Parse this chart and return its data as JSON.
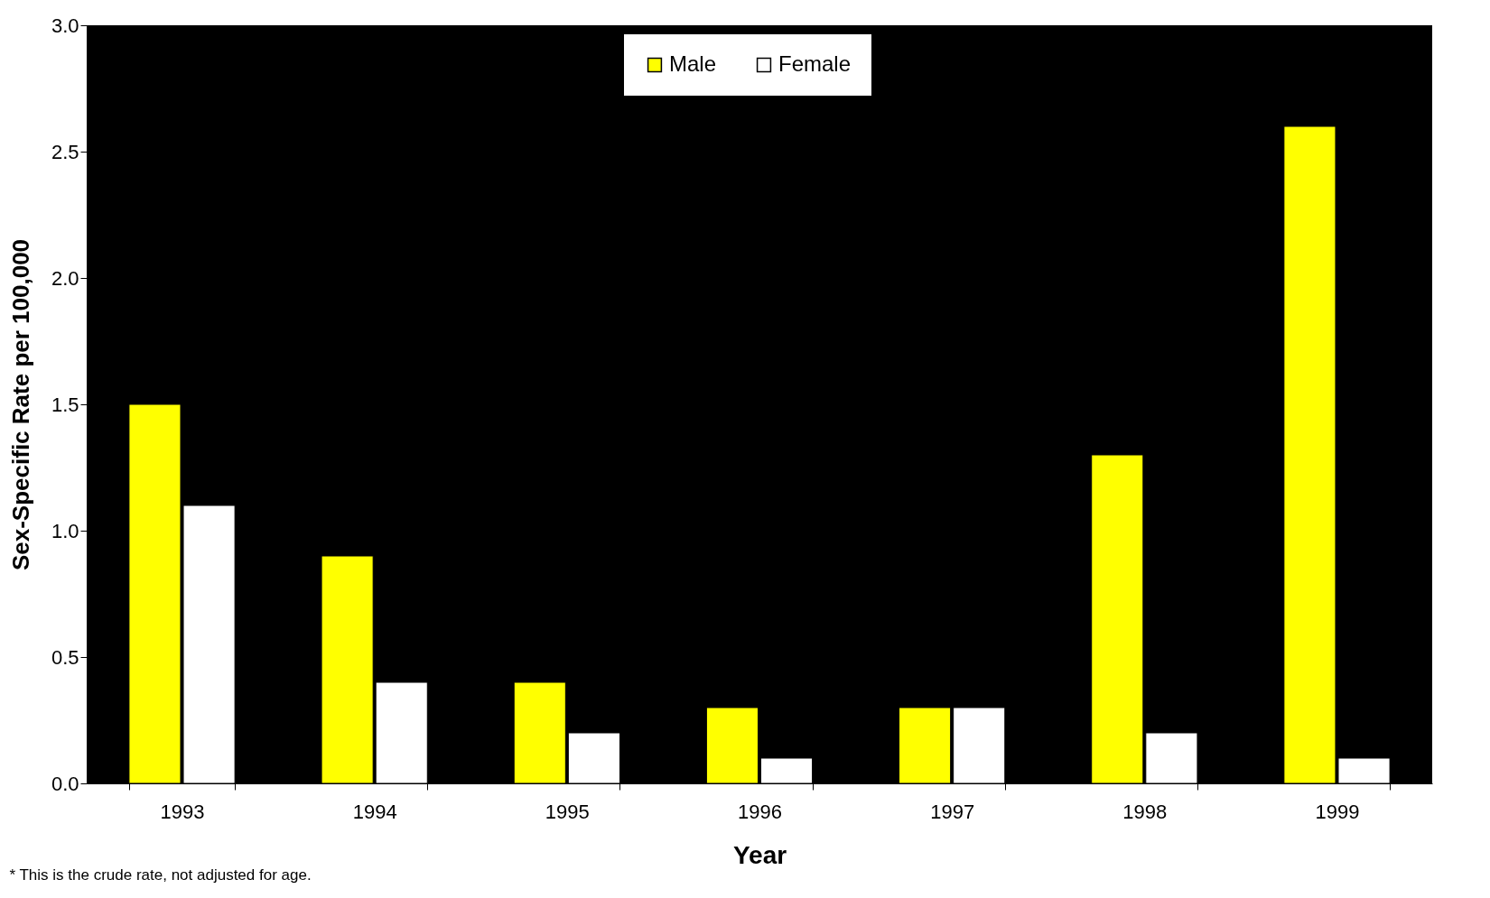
{
  "chart_data": {
    "type": "bar",
    "xlabel": "Year",
    "ylabel": "Sex-Specific Rate per 100,000",
    "categories": [
      "1993",
      "1994",
      "1995",
      "1996",
      "1997",
      "1998",
      "1999"
    ],
    "series": [
      {
        "name": "Male",
        "color": "#ffff00",
        "values": [
          1.5,
          0.9,
          0.4,
          0.3,
          0.3,
          1.3,
          2.6
        ]
      },
      {
        "name": "Female",
        "color": "#ffffff",
        "values": [
          1.1,
          0.4,
          0.2,
          0.1,
          0.3,
          0.2,
          0.1
        ]
      }
    ],
    "ylim": [
      0,
      3
    ],
    "yticks": [
      {
        "value": 0,
        "label": "0.0"
      },
      {
        "value": 0.5,
        "label": "0.5"
      },
      {
        "value": 1,
        "label": "1.0"
      },
      {
        "value": 1.5,
        "label": "1.5"
      },
      {
        "value": 2,
        "label": "2.0"
      },
      {
        "value": 2.5,
        "label": "2.5"
      },
      {
        "value": 3,
        "label": "3.0"
      }
    ],
    "grid": false,
    "legend": "top",
    "annotations": [
      "* This is the crude rate, not adjusted for age."
    ]
  }
}
